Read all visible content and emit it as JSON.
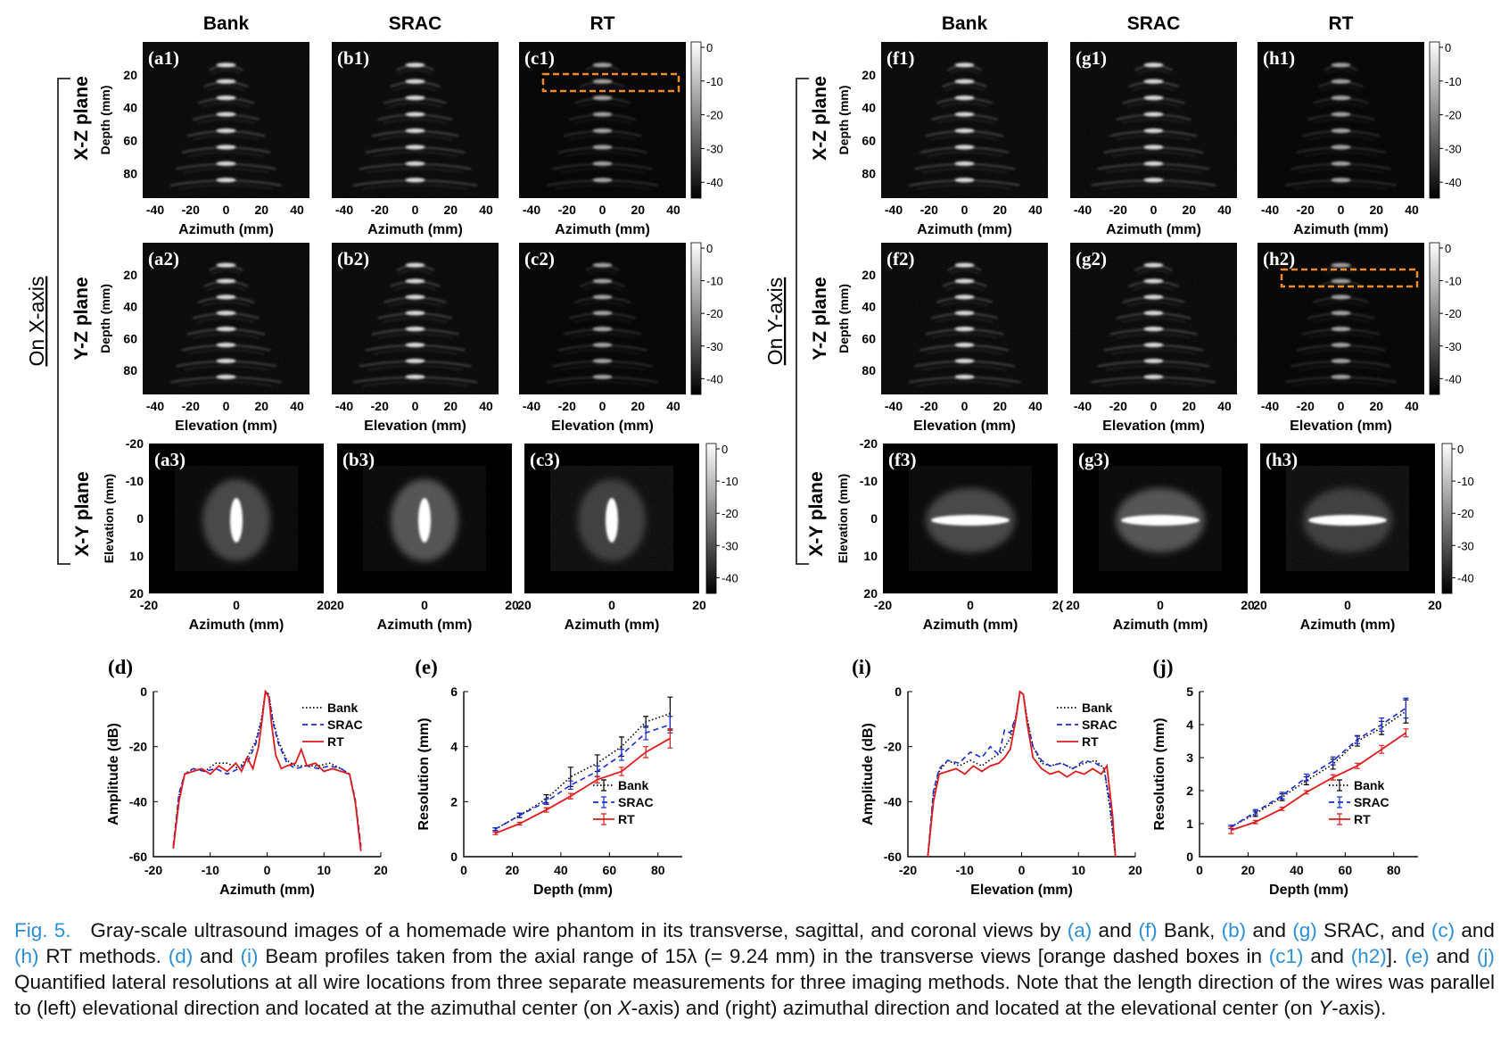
{
  "col_titles": [
    "Bank",
    "SRAC",
    "RT",
    "Bank",
    "SRAC",
    "RT"
  ],
  "group_labels": [
    "On X-axis",
    "On Y-axis"
  ],
  "row_labels": [
    "X-Z plane",
    "Y-Z plane",
    "X-Y plane"
  ],
  "panel_labels": {
    "row1": [
      "(a1)",
      "(b1)",
      "(c1)",
      "(f1)",
      "(g1)",
      "(h1)"
    ],
    "row2": [
      "(a2)",
      "(b2)",
      "(c2)",
      "(f2)",
      "(g2)",
      "(h2)"
    ],
    "row3": [
      "(a3)",
      "(b3)",
      "(c3)",
      "(f3)",
      "(g3)",
      "(h3)"
    ]
  },
  "axis": {
    "depth_label": "Depth (mm)",
    "elev_y_label": "Elevation (mm)",
    "azimuth_label": "Azimuth (mm)",
    "elevation_label": "Elevation (mm)",
    "depth_ticks": [
      "20",
      "40",
      "60",
      "80"
    ],
    "lateral_ticks": [
      "-40",
      "-20",
      "0",
      "20",
      "40"
    ],
    "xy_x_ticks_a3": [
      "-20",
      "0",
      "20"
    ],
    "xy_x_ticks_b3": [
      "20",
      "0",
      "20"
    ],
    "xy_x_ticks_c3": [
      "20",
      "0",
      "20"
    ],
    "xy_x_ticks_f3": [
      "-20",
      "0",
      "2("
    ],
    "xy_x_ticks_g3": [
      "20",
      "0",
      "20"
    ],
    "xy_x_ticks_h3": [
      "20",
      "0",
      "20"
    ],
    "xy_y_ticks": [
      "-20",
      "-10",
      "0",
      "10",
      "20"
    ]
  },
  "colorbar_ticks": [
    "0",
    "-10",
    "-20",
    "-30",
    "-40"
  ],
  "chart_data": [
    {
      "id": "d",
      "label": "(d)",
      "type": "line",
      "xlabel": "Azimuth (mm)",
      "ylabel": "Amplitude (dB)",
      "xlim": [
        -20,
        20
      ],
      "ylim": [
        -60,
        0
      ],
      "xticks": [
        "-20",
        "-10",
        "0",
        "10",
        "20"
      ],
      "yticks": [
        "0",
        "-20",
        "-40",
        "-60"
      ],
      "legend": "top-right",
      "series": [
        {
          "name": "Bank",
          "color": "#000000",
          "dash": "dot",
          "x": [
            -16.5,
            -15.5,
            -14.5,
            -13,
            -11,
            -9,
            -7,
            -5,
            -3.5,
            -2,
            -1,
            -0.3,
            0.3,
            1,
            2,
            3.5,
            5,
            7,
            9,
            11,
            13,
            14.5,
            15.5,
            16.5
          ],
          "y": [
            -57,
            -38,
            -30,
            -28,
            -29,
            -26,
            -26,
            -28,
            -24,
            -18,
            -10,
            0,
            -1,
            -10,
            -18,
            -25,
            -27,
            -27,
            -27,
            -26,
            -28,
            -30,
            -40,
            -57
          ]
        },
        {
          "name": "SRAC",
          "color": "#1a2bd6",
          "dash": "dash",
          "x": [
            -16.5,
            -15.5,
            -14.5,
            -13,
            -11,
            -9,
            -7,
            -5,
            -3.5,
            -2,
            -1,
            -0.3,
            0.3,
            1,
            2,
            3.5,
            5,
            7,
            9,
            11,
            13,
            14.5,
            15.5,
            16.5
          ],
          "y": [
            -56,
            -37,
            -30,
            -28,
            -29,
            -28,
            -30,
            -28,
            -26,
            -19,
            -11,
            0,
            -1,
            -11,
            -19,
            -26,
            -28,
            -27,
            -28,
            -27,
            -28,
            -30,
            -39,
            -56
          ]
        },
        {
          "name": "RT",
          "color": "#e01b1b",
          "dash": "solid",
          "x": [
            -16.5,
            -15.5,
            -14.5,
            -13,
            -11.5,
            -10,
            -8.5,
            -7,
            -5.5,
            -4.5,
            -3.5,
            -2.5,
            -1.5,
            -0.8,
            -0.3,
            0.3,
            0.8,
            1.5,
            2.5,
            3.5,
            5,
            6,
            7,
            8.5,
            10,
            11.5,
            13,
            14.5,
            15.5,
            16.5
          ],
          "y": [
            -57,
            -40,
            -30,
            -29,
            -28,
            -30,
            -27,
            -29,
            -26,
            -29,
            -24,
            -28,
            -20,
            -9,
            0,
            -2,
            -12,
            -23,
            -28,
            -27,
            -26,
            -21,
            -27,
            -26,
            -29,
            -28,
            -29,
            -30,
            -40,
            -58
          ]
        }
      ]
    },
    {
      "id": "e",
      "label": "(e)",
      "type": "line",
      "xlabel": "Depth (mm)",
      "ylabel": "Resolution (mm)",
      "xlim": [
        0,
        90
      ],
      "ylim": [
        0,
        6
      ],
      "xticks": [
        "0",
        "20",
        "40",
        "60",
        "80"
      ],
      "yticks": [
        "0",
        "2",
        "4",
        "6"
      ],
      "legend": "bottom-right",
      "series": [
        {
          "name": "Bank",
          "color": "#000000",
          "dash": "dot",
          "x": [
            13,
            23,
            34,
            44,
            55,
            65,
            75,
            85
          ],
          "y": [
            1.0,
            1.5,
            2.1,
            2.9,
            3.4,
            4.0,
            4.9,
            5.2
          ],
          "err": [
            0.05,
            0.08,
            0.15,
            0.35,
            0.3,
            0.35,
            0.2,
            0.6
          ]
        },
        {
          "name": "SRAC",
          "color": "#1a2bd6",
          "dash": "dash",
          "x": [
            13,
            23,
            34,
            44,
            55,
            65,
            75,
            85
          ],
          "y": [
            1.0,
            1.5,
            2.0,
            2.6,
            3.1,
            3.7,
            4.5,
            4.8
          ],
          "err": [
            0.05,
            0.08,
            0.1,
            0.15,
            0.2,
            0.2,
            0.25,
            0.3
          ]
        },
        {
          "name": "RT",
          "color": "#e01b1b",
          "dash": "solid",
          "x": [
            13,
            23,
            34,
            44,
            55,
            65,
            75,
            85
          ],
          "y": [
            0.85,
            1.2,
            1.7,
            2.2,
            2.8,
            3.1,
            3.8,
            4.3
          ],
          "err": [
            0.05,
            0.05,
            0.08,
            0.1,
            0.12,
            0.15,
            0.2,
            0.35
          ]
        }
      ]
    },
    {
      "id": "i",
      "label": "(i)",
      "type": "line",
      "xlabel": "Elevation (mm)",
      "ylabel": "Amplitude (dB)",
      "xlim": [
        -20,
        20
      ],
      "ylim": [
        -60,
        0
      ],
      "xticks": [
        "-20",
        "-10",
        "0",
        "10",
        "20"
      ],
      "yticks": [
        "0",
        "-20",
        "-40",
        "-60"
      ],
      "legend": "top-right",
      "series": [
        {
          "name": "Bank",
          "color": "#000000",
          "dash": "dot",
          "x": [
            -16.5,
            -15.5,
            -14.5,
            -13,
            -11,
            -9,
            -7,
            -5,
            -3.5,
            -2,
            -1,
            -0.3,
            0.3,
            1,
            2,
            3.5,
            5,
            7,
            9,
            11,
            13,
            14.5,
            15.5,
            16.5
          ],
          "y": [
            -60,
            -37,
            -29,
            -25,
            -27,
            -25,
            -27,
            -24,
            -22,
            -17,
            -9,
            0,
            -1,
            -10,
            -20,
            -26,
            -27,
            -26,
            -28,
            -26,
            -25,
            -28,
            -42,
            -60
          ]
        },
        {
          "name": "SRAC",
          "color": "#1a2bd6",
          "dash": "dash",
          "x": [
            -16.5,
            -15.5,
            -14.5,
            -13,
            -11,
            -9,
            -7,
            -5.5,
            -4,
            -3,
            -2,
            -1,
            -0.3,
            0.3,
            1,
            2,
            3.5,
            5,
            7,
            9,
            11,
            13,
            14.5,
            15.5,
            16.5
          ],
          "y": [
            -60,
            -36,
            -28,
            -25,
            -26,
            -22,
            -24,
            -20,
            -23,
            -14,
            -15,
            -9,
            0,
            -1,
            -11,
            -20,
            -25,
            -27,
            -26,
            -28,
            -25,
            -26,
            -28,
            -40,
            -60
          ]
        },
        {
          "name": "RT",
          "color": "#e01b1b",
          "dash": "solid",
          "x": [
            -16.5,
            -15.5,
            -14.5,
            -13,
            -11.5,
            -10,
            -8.5,
            -7,
            -5.5,
            -4,
            -3,
            -2,
            -1,
            -0.3,
            0.3,
            1,
            2,
            3.5,
            5,
            6.5,
            8,
            9.5,
            11,
            12.5,
            14,
            15,
            16,
            16.5
          ],
          "y": [
            -60,
            -40,
            -30,
            -29,
            -28,
            -30,
            -27,
            -29,
            -27,
            -26,
            -24,
            -21,
            -10,
            0,
            -1,
            -12,
            -24,
            -28,
            -30,
            -29,
            -31,
            -29,
            -30,
            -28,
            -30,
            -27,
            -45,
            -60
          ]
        }
      ]
    },
    {
      "id": "j",
      "label": "(j)",
      "type": "line",
      "xlabel": "Depth (mm)",
      "ylabel": "Resolution (mm)",
      "xlim": [
        0,
        90
      ],
      "ylim": [
        0,
        5
      ],
      "xticks": [
        "0",
        "20",
        "40",
        "60",
        "80"
      ],
      "yticks": [
        "0",
        "1",
        "2",
        "3",
        "4",
        "5"
      ],
      "legend": "bottom-right",
      "series": [
        {
          "name": "Bank",
          "color": "#000000",
          "dash": "dot",
          "x": [
            13,
            23,
            34,
            44,
            55,
            65,
            75,
            85
          ],
          "y": [
            0.9,
            1.3,
            1.8,
            2.3,
            2.8,
            3.5,
            3.9,
            4.4
          ],
          "err": [
            0.05,
            0.08,
            0.1,
            0.12,
            0.15,
            0.15,
            0.2,
            0.35
          ]
        },
        {
          "name": "SRAC",
          "color": "#1a2bd6",
          "dash": "dash",
          "x": [
            13,
            23,
            34,
            44,
            55,
            65,
            75,
            85
          ],
          "y": [
            0.9,
            1.35,
            1.85,
            2.4,
            2.9,
            3.55,
            4.0,
            4.5
          ],
          "err": [
            0.05,
            0.08,
            0.1,
            0.1,
            0.12,
            0.12,
            0.2,
            0.3
          ]
        },
        {
          "name": "RT",
          "color": "#e01b1b",
          "dash": "solid",
          "x": [
            13,
            23,
            34,
            44,
            55,
            65,
            75,
            85
          ],
          "y": [
            0.8,
            1.05,
            1.45,
            1.95,
            2.4,
            2.75,
            3.25,
            3.75
          ],
          "err": [
            0.1,
            0.05,
            0.05,
            0.05,
            0.08,
            0.08,
            0.12,
            0.12
          ]
        }
      ]
    }
  ],
  "caption": {
    "fig_label": "Fig. 5.",
    "text_1": "Gray-scale ultrasound images of a homemade wire phantom in its transverse, sagittal, and coronal views by",
    "ref_a": "(a)",
    "and_1": "and",
    "ref_f": "(f)",
    "text_2": "Bank,",
    "ref_b": "(b)",
    "and_2": "and",
    "ref_g": "(g)",
    "text_3": "SRAC, and",
    "ref_c": "(c)",
    "and_3": "and",
    "ref_h": "(h)",
    "text_4": "RT methods.",
    "ref_d": "(d)",
    "and_4": "and",
    "ref_i": "(i)",
    "text_5": "Beam profiles taken from the axial range of 15λ (= 9.24 mm) in the transverse views [orange dashed boxes in",
    "ref_c1": "(c1)",
    "and_5": "and",
    "ref_h2": "(h2)",
    "text_6": "].",
    "ref_e": "(e)",
    "and_6": "and",
    "ref_j": "(j)",
    "text_7": "Quantified lateral resolutions at all wire locations from three separate measurements for three imaging methods. Note that the length direction of the wires was parallel to (left) elevational direction and located at the azimuthal center (on",
    "x_axis": "X",
    "text_8": "-axis) and (right) azimuthal direction and located at the elevational center (on",
    "y_axis": "Y",
    "text_9": "-axis)."
  }
}
